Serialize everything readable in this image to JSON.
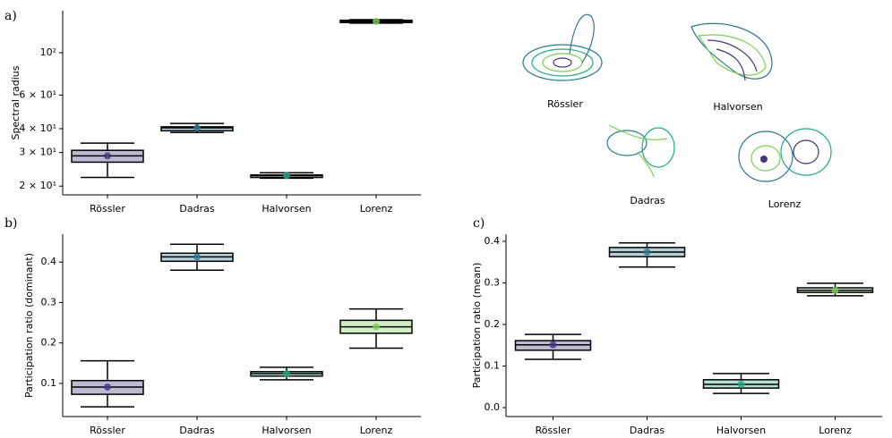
{
  "chart_data": [
    {
      "type": "box",
      "panel": "a)",
      "ylabel": "Spectral radius",
      "log": true,
      "categories": [
        "Rössler",
        "Dadras",
        "Halvorsen",
        "Lorenz"
      ],
      "colors": [
        "#46337e",
        "#2a788e",
        "#22a884",
        "#7ad151"
      ],
      "whislo": [
        22.2,
        38.2,
        22.0,
        143
      ],
      "q1": [
        26.7,
        39.0,
        22.2,
        144
      ],
      "median": [
        28.8,
        40.4,
        22.7,
        146
      ],
      "q3": [
        30.8,
        40.9,
        22.9,
        148
      ],
      "whishi": [
        33.6,
        42.6,
        23.5,
        149
      ],
      "ylim": [
        18,
        166
      ],
      "yticks": [
        {
          "value": 20,
          "label": "2 × 10¹"
        },
        {
          "value": 30,
          "label": "3 × 10¹"
        },
        {
          "value": 40,
          "label": "4 × 10¹"
        },
        {
          "value": 60,
          "label": "6 × 10¹"
        },
        {
          "value": 100,
          "label": "10²"
        }
      ]
    },
    {
      "type": "box",
      "panel": "b)",
      "ylabel": "Participation ratio (dominant)",
      "log": false,
      "categories": [
        "Rössler",
        "Dadras",
        "Halvorsen",
        "Lorenz"
      ],
      "colors": [
        "#46337e",
        "#2a788e",
        "#22a884",
        "#7ad151"
      ],
      "whislo": [
        0.042,
        0.38,
        0.109,
        0.187
      ],
      "q1": [
        0.073,
        0.402,
        0.118,
        0.224
      ],
      "median": [
        0.091,
        0.413,
        0.124,
        0.24
      ],
      "q3": [
        0.107,
        0.422,
        0.129,
        0.256
      ],
      "whishi": [
        0.156,
        0.444,
        0.14,
        0.284
      ],
      "ylim": [
        0.018,
        0.469
      ],
      "yticks": [
        0.1,
        0.2,
        0.3,
        0.4
      ]
    },
    {
      "type": "box",
      "panel": "c)",
      "ylabel": "Participation ratio (mean)",
      "log": false,
      "categories": [
        "Rössler",
        "Dadras",
        "Halvorsen",
        "Lorenz"
      ],
      "colors": [
        "#46337e",
        "#2a788e",
        "#22a884",
        "#7ad151"
      ],
      "whislo": [
        0.116,
        0.338,
        0.034,
        0.269
      ],
      "q1": [
        0.138,
        0.363,
        0.047,
        0.277
      ],
      "median": [
        0.151,
        0.374,
        0.056,
        0.282
      ],
      "q3": [
        0.161,
        0.385,
        0.067,
        0.288
      ],
      "whishi": [
        0.176,
        0.396,
        0.082,
        0.299
      ],
      "ylim": [
        -0.0215,
        0.417
      ],
      "yticks": [
        {
          "value": 0,
          "label": "0.0"
        },
        0.1,
        0.2,
        0.3,
        0.4
      ]
    }
  ],
  "attractors": [
    {
      "name": "Rössler"
    },
    {
      "name": "Halvorsen"
    },
    {
      "name": "Dadras"
    },
    {
      "name": "Lorenz"
    }
  ]
}
